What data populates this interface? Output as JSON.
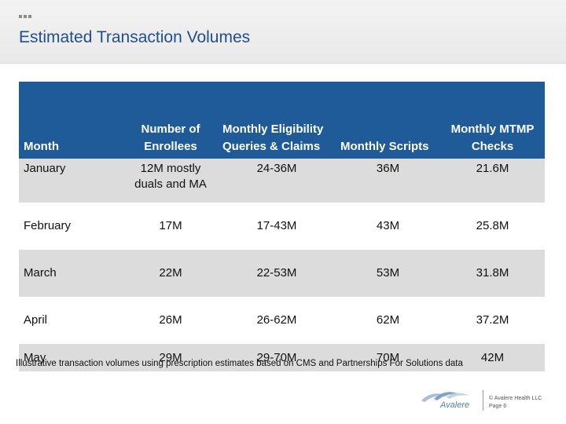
{
  "slide": {
    "title": "Estimated Transaction Volumes",
    "footnote": "Illustrative transaction volumes using prescription estimates based on CMS and Partnerships For Solutions data",
    "logo_text": "Avalere",
    "copyright": "© Avalere Health LLC",
    "page": "Page 6"
  },
  "table": {
    "headers": {
      "month": "Month",
      "enrollees": "Number of Enrollees",
      "queries": "Monthly Eligibility Queries & Claims",
      "scripts": "Monthly Scripts",
      "mtmp": "Monthly MTMP Checks"
    },
    "rows": [
      {
        "month": "January",
        "enrollees": "12M mostly duals and MA",
        "queries": "24-36M",
        "scripts": "36M",
        "mtmp": "21.6M"
      },
      {
        "month": "February",
        "enrollees": "17M",
        "queries": "17-43M",
        "scripts": "43M",
        "mtmp": "25.8M"
      },
      {
        "month": "March",
        "enrollees": "22M",
        "queries": "22-53M",
        "scripts": "53M",
        "mtmp": "31.8M"
      },
      {
        "month": "April",
        "enrollees": "26M",
        "queries": "26-62M",
        "scripts": "62M",
        "mtmp": "37.2M"
      },
      {
        "month": "May",
        "enrollees": "29M",
        "queries": "29-70M",
        "scripts": "70M",
        "mtmp": "42M"
      }
    ]
  },
  "colors": {
    "header_bg": "#1f5a99",
    "title": "#1f4f8f",
    "row_shade": "#dcdcdc"
  }
}
